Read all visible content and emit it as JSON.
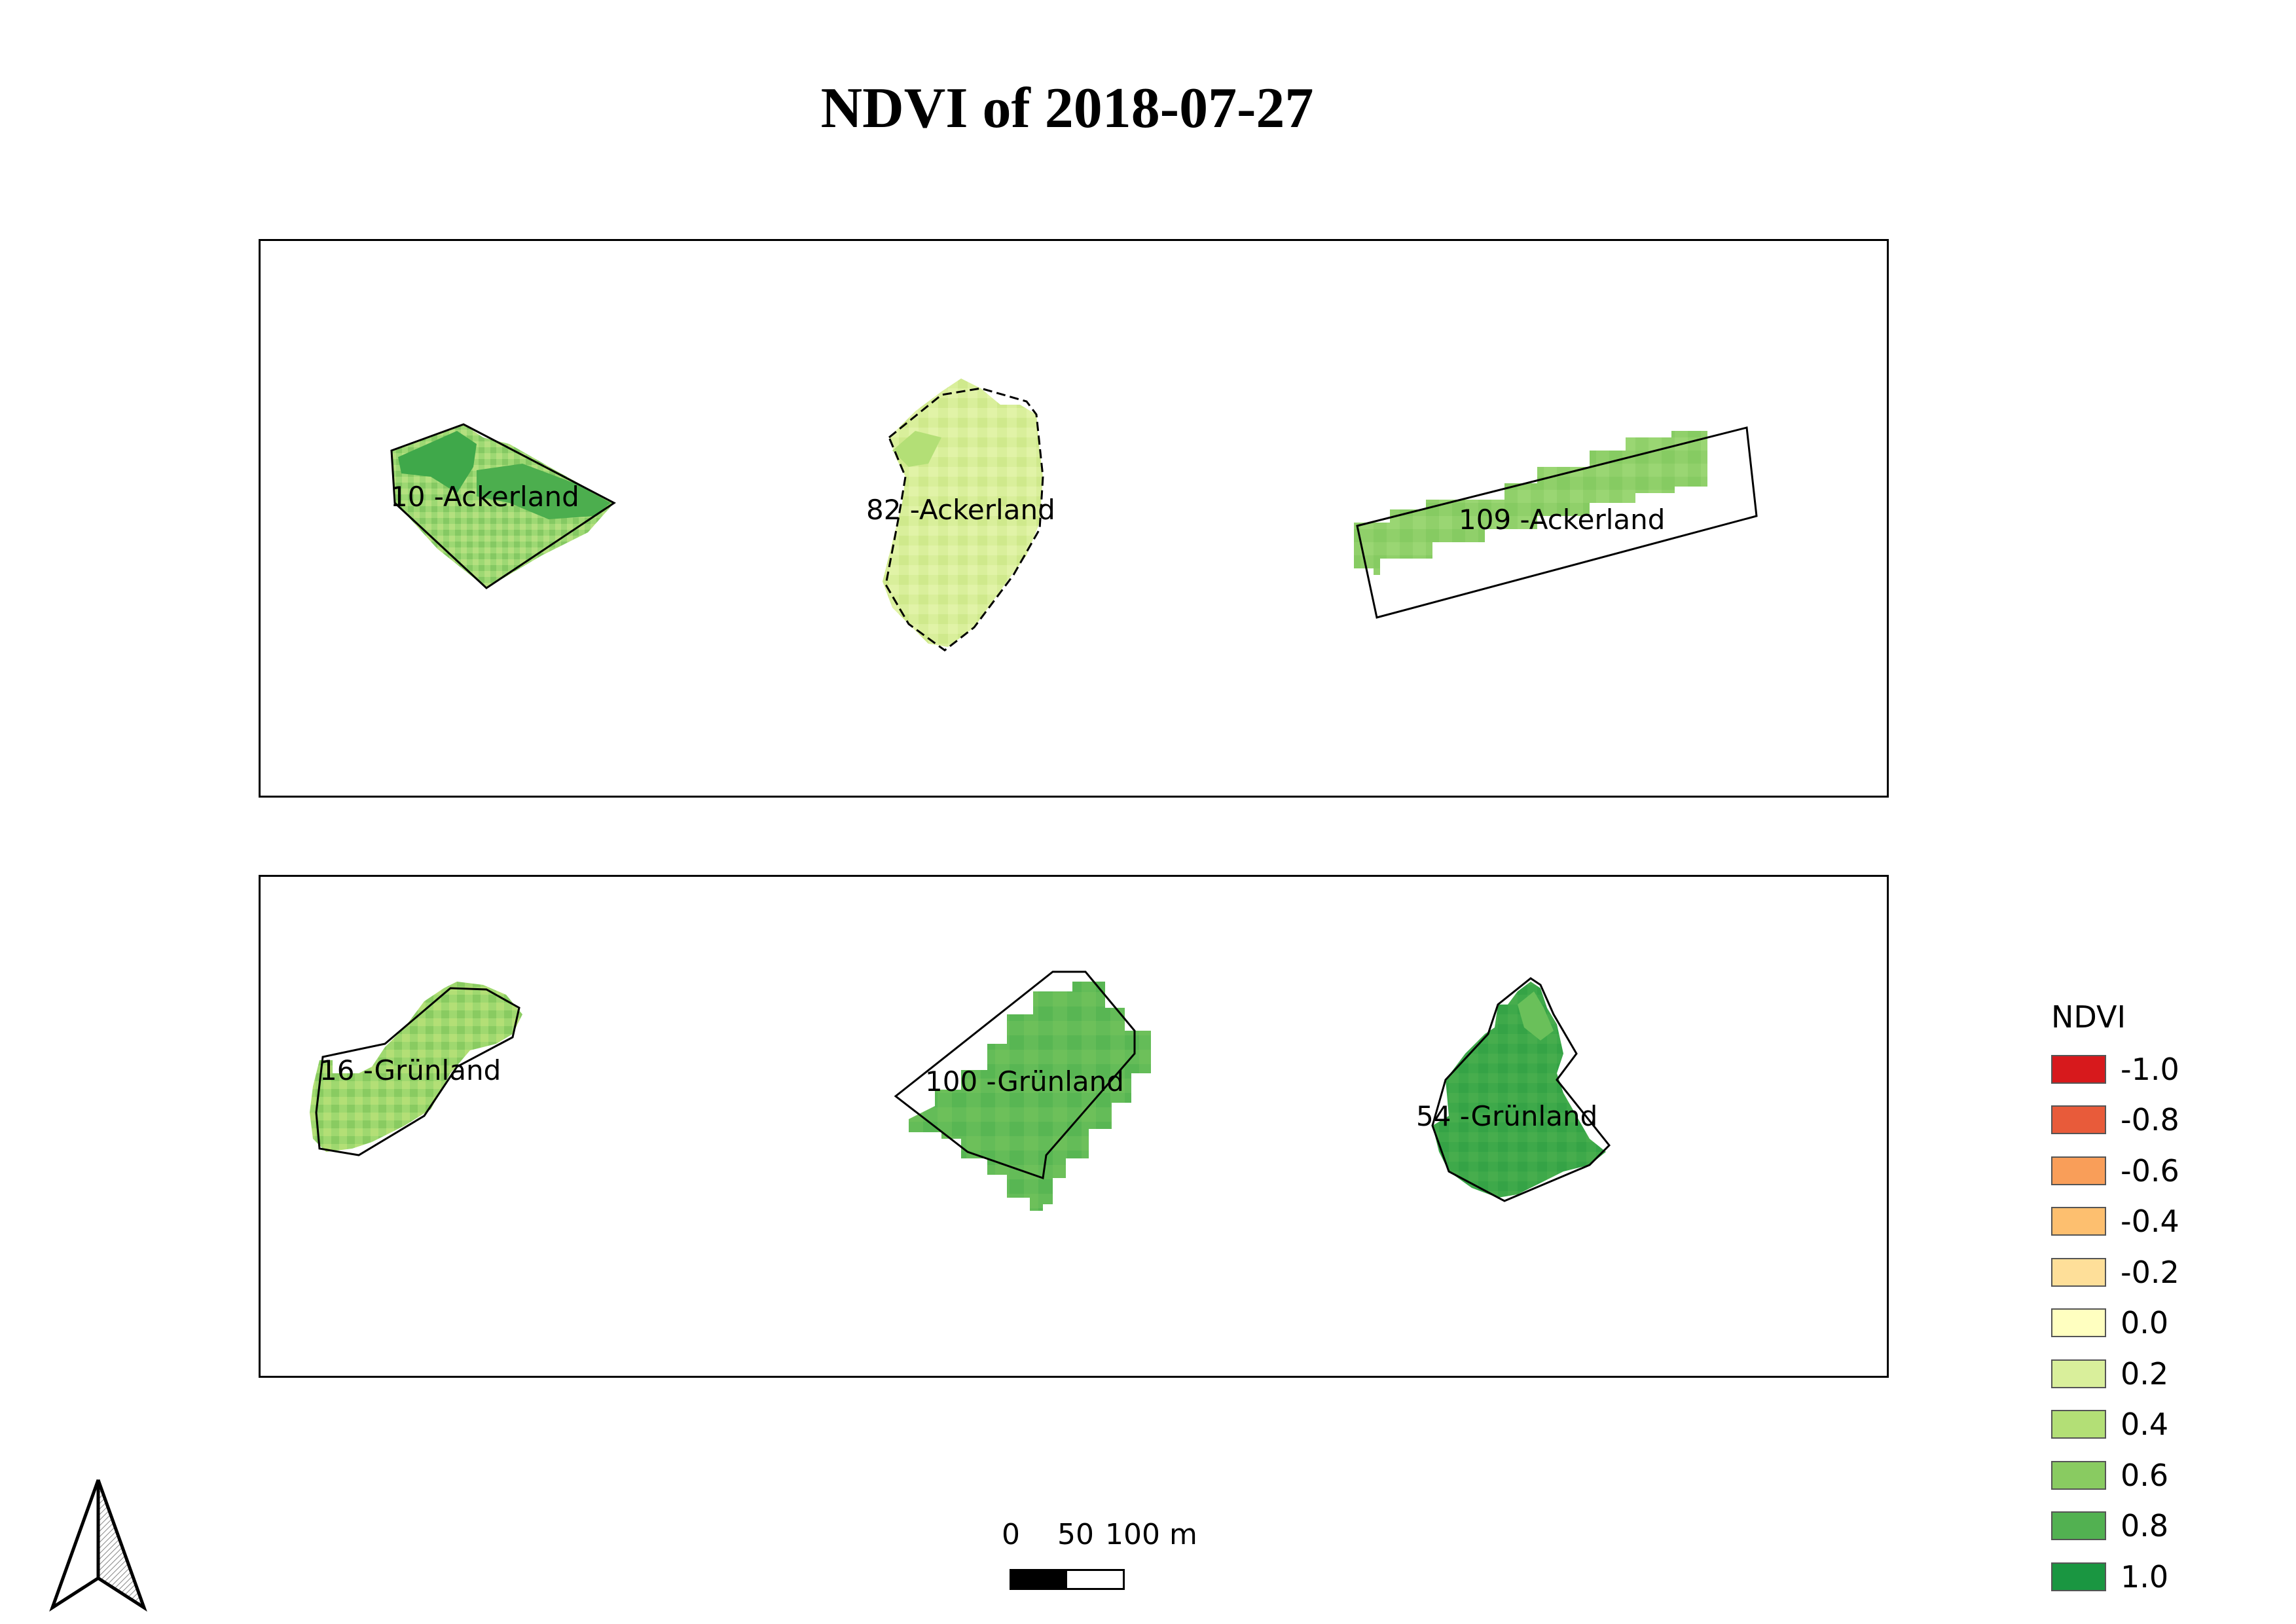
{
  "title": "NDVI of 2018-07-27",
  "map": {
    "top_panel": {
      "fields": [
        {
          "label": "10 -Ackerland",
          "ndvi_hint": 0.7
        },
        {
          "label": "82 -Ackerland",
          "ndvi_hint": 0.3
        },
        {
          "label": "109 -Ackerland",
          "ndvi_hint": 0.5
        }
      ]
    },
    "bottom_panel": {
      "fields": [
        {
          "label": "16 -Grünland",
          "ndvi_hint": 0.5
        },
        {
          "label": "100 -Grünland",
          "ndvi_hint": 0.7
        },
        {
          "label": "54 -Grünland",
          "ndvi_hint": 0.85
        }
      ]
    }
  },
  "legend": {
    "title": "NDVI",
    "items": [
      {
        "value": "-1.0",
        "color": "#d7191c"
      },
      {
        "value": "-0.8",
        "color": "#e85b3a"
      },
      {
        "value": "-0.6",
        "color": "#f99e59"
      },
      {
        "value": "-0.4",
        "color": "#fdbf6f"
      },
      {
        "value": "-0.2",
        "color": "#fedf99"
      },
      {
        "value": "0.0",
        "color": "#ffffc0"
      },
      {
        "value": "0.2",
        "color": "#d9ef9b"
      },
      {
        "value": "0.4",
        "color": "#b3df76"
      },
      {
        "value": "0.6",
        "color": "#89cb61"
      },
      {
        "value": "0.8",
        "color": "#52b151"
      },
      {
        "value": "1.0",
        "color": "#1a9641"
      }
    ]
  },
  "scalebar": {
    "labels": [
      "0",
      "50",
      "100 m"
    ]
  },
  "north_arrow": {
    "icon": "north-arrow-icon"
  }
}
